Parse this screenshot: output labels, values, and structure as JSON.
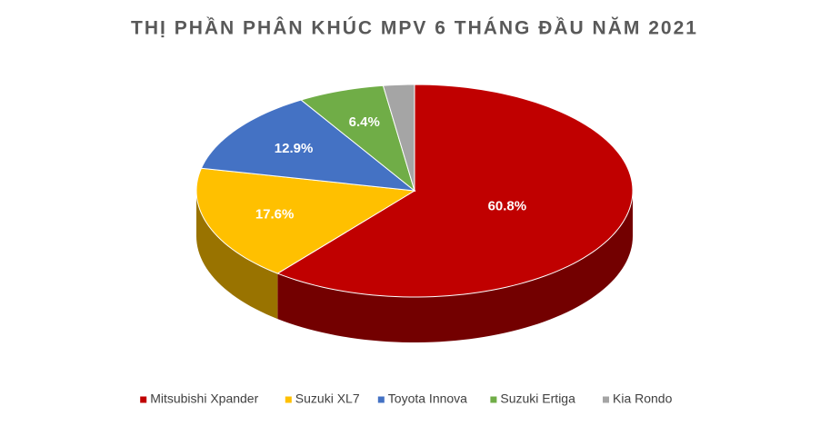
{
  "chart_data": {
    "type": "pie",
    "title": "THỊ PHẦN PHÂN KHÚC MPV 6 THÁNG ĐẦU NĂM 2021",
    "categories": [
      "Mitsubishi Xpander",
      "Suzuki XL7",
      "Toyota Innova",
      "Suzuki Ertiga",
      "Kia Rondo"
    ],
    "values": [
      60.8,
      17.6,
      12.9,
      6.4,
      2.3
    ],
    "value_labels": [
      "60.8%",
      "17.6%",
      "12.9%",
      "6.4%",
      null
    ],
    "colors": [
      "#c00000",
      "#ffc000",
      "#4472c4",
      "#70ad47",
      "#a5a5a5"
    ],
    "legend": "bottom"
  }
}
